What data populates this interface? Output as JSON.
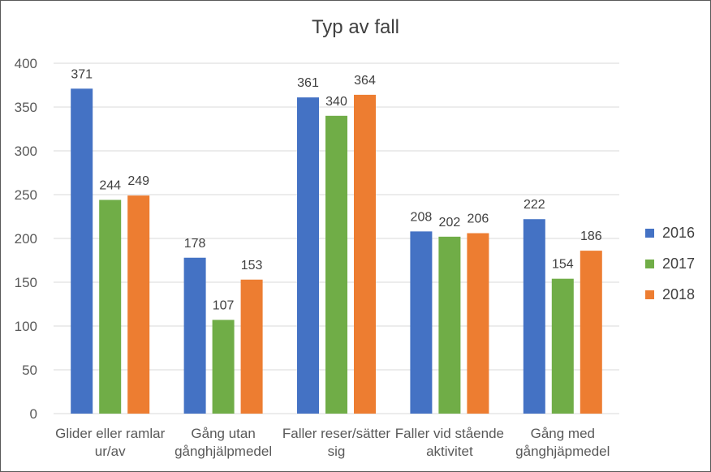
{
  "chart_data": {
    "type": "bar",
    "title": "Typ av fall",
    "categories": [
      [
        "Glider eller ramlar",
        "ur/av"
      ],
      [
        "Gång utan",
        "gånghjälpmedel"
      ],
      [
        "Faller reser/sätter",
        "sig"
      ],
      [
        "Faller vid stående",
        "aktivitet"
      ],
      [
        "Gång med",
        "gånghjäpmedel"
      ]
    ],
    "series": [
      {
        "name": "2016",
        "color": "#4472C4",
        "values": [
          371,
          178,
          361,
          208,
          222
        ]
      },
      {
        "name": "2017",
        "color": "#70AD47",
        "values": [
          244,
          107,
          340,
          202,
          154
        ]
      },
      {
        "name": "2018",
        "color": "#ED7D31",
        "values": [
          249,
          153,
          364,
          206,
          186
        ]
      }
    ],
    "ylim": [
      0,
      400
    ],
    "yticks": [
      0,
      50,
      100,
      150,
      200,
      250,
      300,
      350,
      400
    ],
    "grid": true,
    "legend": "right",
    "xlabel": "",
    "ylabel": ""
  }
}
